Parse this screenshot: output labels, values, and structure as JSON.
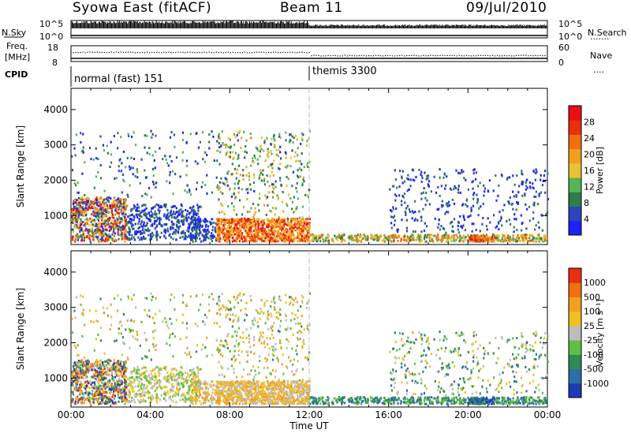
{
  "header": {
    "station": "Syowa East (fitACF)",
    "beam": "Beam 11",
    "date": "09/Jul/2010"
  },
  "summary": {
    "nsky_label": "N.Sky",
    "nsky_hi": "10^5",
    "nsky_lo": "10^0",
    "nsearch_label": "N.Search",
    "nsearch_hi": "10^5",
    "nsearch_lo": "10^0",
    "freq_label_1": "Freq.",
    "freq_label_2": "[MHz]",
    "freq_hi": "18",
    "freq_lo": "8",
    "nave_label": "Nave",
    "nave_hi": "60",
    "nave_lo": "0",
    "cpid_label": "CPID",
    "cpid_modes": [
      {
        "name": "normal (fast) 151",
        "start_h": 0
      },
      {
        "name": "themis 3300",
        "start_h": 12
      }
    ]
  },
  "chart_data": [
    {
      "type": "heatmap",
      "name": "power",
      "ylabel": "Slant Range [km]",
      "yticks": [
        "1000",
        "2000",
        "3000",
        "4000"
      ],
      "ytick_values": [
        1000,
        2000,
        3000,
        4000
      ],
      "ylim": [
        180,
        4600
      ],
      "xlim": [
        0,
        24
      ],
      "colorbar": {
        "label": "Power [dB]",
        "ticks": [
          "4",
          "8",
          "12",
          "16",
          "20",
          "24",
          "28"
        ],
        "colors": [
          "#1f1fff",
          "#2a46b8",
          "#2e7d4a",
          "#55b455",
          "#e8c232",
          "#f0a020",
          "#f07010",
          "#e8300c",
          "#e81010"
        ]
      },
      "regions": [
        {
          "h0": 0.0,
          "h1": 2.8,
          "r0": 250,
          "r1": 1500,
          "level": "mixed-high"
        },
        {
          "h0": 2.8,
          "h1": 6.5,
          "r0": 250,
          "r1": 1300,
          "level": "low"
        },
        {
          "h0": 7.3,
          "h1": 12.0,
          "r0": 250,
          "r1": 900,
          "level": "high"
        },
        {
          "h0": 12.0,
          "h1": 24.0,
          "r0": 250,
          "r1": 450,
          "level": "mid"
        },
        {
          "h0": 16.0,
          "h1": 24.0,
          "r0": 500,
          "r1": 2200,
          "level": "low"
        }
      ]
    },
    {
      "type": "heatmap",
      "name": "velocity",
      "ylabel": "Slant Range [km]",
      "yticks": [
        "1000",
        "2000",
        "3000",
        "4000"
      ],
      "ytick_values": [
        1000,
        2000,
        3000,
        4000
      ],
      "ylim": [
        180,
        4600
      ],
      "xlim": [
        0,
        24
      ],
      "xticks": [
        "00:00",
        "04:00",
        "08:00",
        "12:00",
        "16:00",
        "20:00",
        "00:00"
      ],
      "xtick_values": [
        0,
        4,
        8,
        12,
        16,
        20,
        24
      ],
      "xlabel": "Time UT",
      "colorbar": {
        "label": "Velocity [m s⁻¹]",
        "ticks": [
          "1000",
          "500",
          "100",
          "25",
          "-25",
          "-100",
          "-500",
          "-1000"
        ],
        "colors": [
          "#1b3cb4",
          "#2c6ea8",
          "#2e8a55",
          "#5fbf45",
          "#bdbdbd",
          "#f0c020",
          "#f0a020",
          "#f07010",
          "#e83010"
        ]
      }
    }
  ]
}
